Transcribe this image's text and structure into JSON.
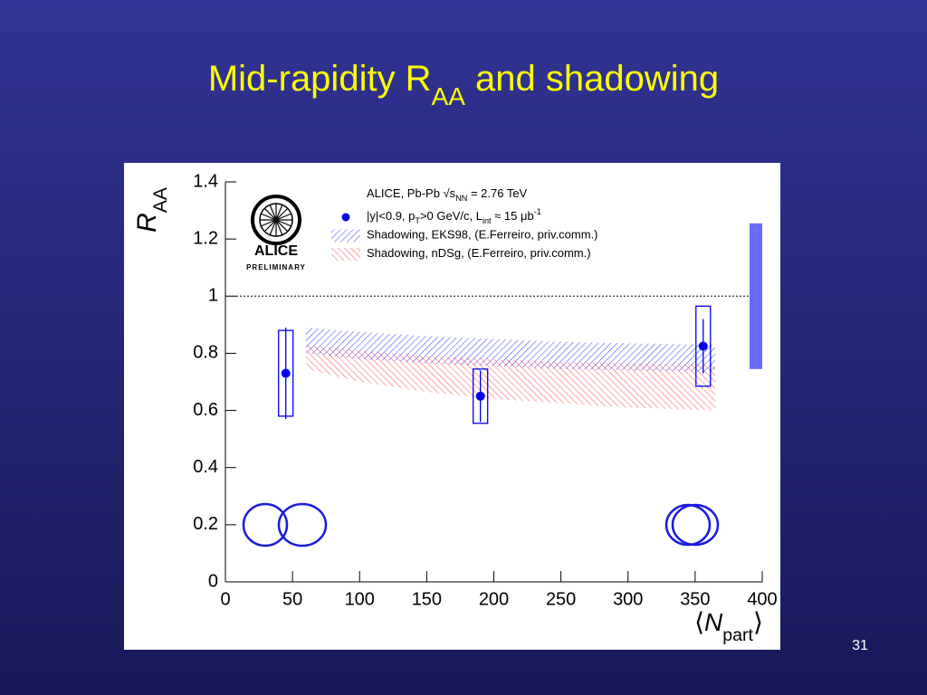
{
  "slide": {
    "title": [
      {
        "text": "Mid-rapidity R"
      },
      {
        "text": "AA",
        "sub": true
      },
      {
        "text": " and shadowing"
      }
    ],
    "page_number": "31"
  },
  "chart_data": {
    "type": "scatter",
    "logo_text": "ALICE",
    "logo_subtext": "PRELIMINARY",
    "legend_header": [
      {
        "text": "ALICE, Pb-Pb √s"
      },
      {
        "text": "NN",
        "sub": true
      },
      {
        "text": " = 2.76 TeV"
      }
    ],
    "y_label": [
      {
        "text": "R",
        "italic": true
      },
      {
        "text": "AA",
        "sub": true
      }
    ],
    "x_label": [
      {
        "text": "⟨"
      },
      {
        "text": "N",
        "italic": true
      },
      {
        "text": "part",
        "sub": true
      },
      {
        "text": "⟩"
      }
    ],
    "xlim": [
      0,
      400
    ],
    "ylim": [
      0,
      1.4
    ],
    "xticks": [
      0,
      50,
      100,
      150,
      200,
      250,
      300,
      350,
      400
    ],
    "yticks": [
      0,
      0.2,
      0.4,
      0.6,
      0.8,
      1,
      1.2,
      1.4
    ],
    "reference_line": 1,
    "global_uncertainty": {
      "value": 1,
      "error": 0.255,
      "color": "#6a6aff"
    },
    "series": [
      {
        "name": [
          {
            "text": "|y|<0.9, p"
          },
          {
            "text": "T",
            "sub": true
          },
          {
            "text": ">0 GeV/c, L"
          },
          {
            "text": "int",
            "sub": true
          },
          {
            "text": " ≈ 15 μb"
          },
          {
            "text": "-1",
            "sup": true
          }
        ],
        "kind": "points",
        "color": "#0000ee",
        "x": [
          45,
          190,
          356
        ],
        "values": [
          0.73,
          0.65,
          0.825
        ],
        "stat_errors": [
          0.16,
          0.09,
          0.095
        ],
        "sys_errors": [
          0.15,
          0.095,
          0.14
        ]
      },
      {
        "name": [
          {
            "text": "Shadowing, EKS98, (E.Ferreiro, priv.comm.)"
          }
        ],
        "kind": "band",
        "color": "#3a3aff",
        "x": [
          60,
          100,
          150,
          200,
          250,
          300,
          365
        ],
        "upper": [
          0.89,
          0.875,
          0.86,
          0.85,
          0.84,
          0.835,
          0.83
        ],
        "lower": [
          0.8,
          0.78,
          0.765,
          0.755,
          0.745,
          0.74,
          0.735
        ]
      },
      {
        "name": [
          {
            "text": "Shadowing, nDSg, (E.Ferreiro, priv.comm.)"
          }
        ],
        "kind": "band",
        "color": "#ff5050",
        "x": [
          60,
          100,
          150,
          200,
          250,
          300,
          365
        ],
        "upper": [
          0.83,
          0.81,
          0.79,
          0.78,
          0.77,
          0.765,
          0.76
        ],
        "lower": [
          0.745,
          0.7,
          0.665,
          0.64,
          0.625,
          0.61,
          0.6
        ]
      }
    ]
  }
}
